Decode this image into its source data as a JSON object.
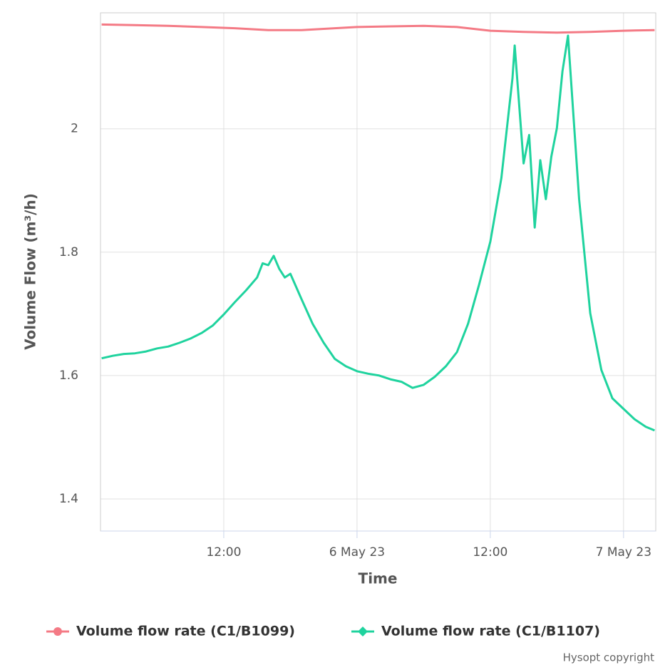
{
  "chart_data": {
    "type": "line",
    "xlabel": "Time",
    "ylabel": "Volume Flow (m³/h)",
    "xlim": [
      "2023-05-05T00:54",
      "2023-05-07T02:54"
    ],
    "xticks": [
      {
        "value": "2023-05-05T12:00",
        "label": "12:00"
      },
      {
        "value": "2023-05-06T00:00",
        "label": "6 May 23"
      },
      {
        "value": "2023-05-06T12:00",
        "label": "12:00"
      },
      {
        "value": "2023-05-07T00:00",
        "label": "7 May 23"
      }
    ],
    "ylim": [
      1.348,
      2.188
    ],
    "yticks": [
      1.4,
      1.6,
      1.8,
      2
    ],
    "grid": true,
    "legend": "bottom",
    "credits": "Hysopt copyright",
    "series": [
      {
        "name": "Volume flow rate (C1/B1099)",
        "color": "#f47a85",
        "marker": "circle",
        "x": [
          "2023-05-05T01:00",
          "2023-05-05T04:00",
          "2023-05-05T07:00",
          "2023-05-05T10:00",
          "2023-05-05T13:00",
          "2023-05-05T16:00",
          "2023-05-05T19:00",
          "2023-05-06T00:00",
          "2023-05-06T03:00",
          "2023-05-06T06:00",
          "2023-05-06T09:00",
          "2023-05-06T12:00",
          "2023-05-06T15:00",
          "2023-05-06T18:00",
          "2023-05-06T21:00",
          "2023-05-07T00:00",
          "2023-05-07T02:48"
        ],
        "values": [
          2.169,
          2.168,
          2.167,
          2.165,
          2.163,
          2.16,
          2.16,
          2.165,
          2.166,
          2.167,
          2.165,
          2.159,
          2.157,
          2.156,
          2.157,
          2.159,
          2.16
        ]
      },
      {
        "name": "Volume flow rate (C1/B1107)",
        "color": "#1fd39e",
        "marker": "diamond",
        "x": [
          "2023-05-05T01:00",
          "2023-05-05T02:00",
          "2023-05-05T03:00",
          "2023-05-05T04:00",
          "2023-05-05T05:00",
          "2023-05-05T06:00",
          "2023-05-05T07:00",
          "2023-05-05T08:00",
          "2023-05-05T09:00",
          "2023-05-05T10:00",
          "2023-05-05T11:00",
          "2023-05-05T12:00",
          "2023-05-05T13:00",
          "2023-05-05T14:00",
          "2023-05-05T15:00",
          "2023-05-05T15:30",
          "2023-05-05T16:00",
          "2023-05-05T16:30",
          "2023-05-05T17:00",
          "2023-05-05T17:30",
          "2023-05-05T18:00",
          "2023-05-05T19:00",
          "2023-05-05T20:00",
          "2023-05-05T21:00",
          "2023-05-05T22:00",
          "2023-05-05T23:00",
          "2023-05-06T00:00",
          "2023-05-06T01:00",
          "2023-05-06T02:00",
          "2023-05-06T03:00",
          "2023-05-06T04:00",
          "2023-05-06T05:00",
          "2023-05-06T06:00",
          "2023-05-06T07:00",
          "2023-05-06T08:00",
          "2023-05-06T09:00",
          "2023-05-06T10:00",
          "2023-05-06T11:00",
          "2023-05-06T12:00",
          "2023-05-06T13:00",
          "2023-05-06T14:00",
          "2023-05-06T14:12",
          "2023-05-06T15:00",
          "2023-05-06T15:30",
          "2023-05-06T16:00",
          "2023-05-06T16:30",
          "2023-05-06T17:00",
          "2023-05-06T17:30",
          "2023-05-06T18:00",
          "2023-05-06T18:30",
          "2023-05-06T19:00",
          "2023-05-06T20:00",
          "2023-05-06T21:00",
          "2023-05-06T22:00",
          "2023-05-06T23:00",
          "2023-05-07T00:00",
          "2023-05-07T01:00",
          "2023-05-07T02:00",
          "2023-05-07T02:48"
        ],
        "values": [
          1.628,
          1.632,
          1.635,
          1.636,
          1.639,
          1.644,
          1.647,
          1.653,
          1.66,
          1.669,
          1.681,
          1.699,
          1.719,
          1.738,
          1.759,
          1.782,
          1.779,
          1.794,
          1.773,
          1.759,
          1.765,
          1.724,
          1.684,
          1.653,
          1.627,
          1.615,
          1.607,
          1.603,
          1.6,
          1.594,
          1.59,
          1.58,
          1.585,
          1.598,
          1.615,
          1.638,
          1.684,
          1.748,
          1.817,
          1.92,
          2.082,
          2.135,
          1.944,
          1.99,
          1.84,
          1.949,
          1.886,
          1.955,
          2.001,
          2.093,
          2.151,
          1.886,
          1.701,
          1.609,
          1.563,
          1.546,
          1.529,
          1.517,
          1.511
        ]
      }
    ]
  }
}
